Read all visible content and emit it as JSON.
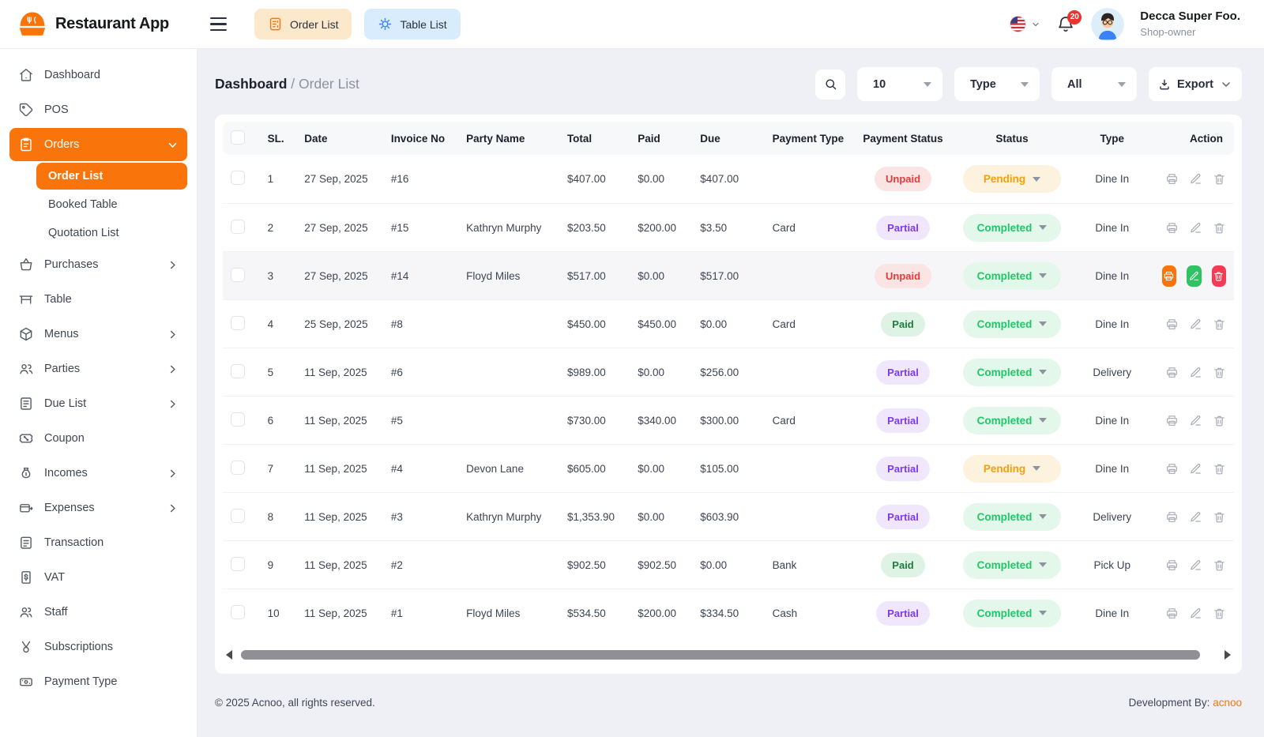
{
  "app": {
    "name": "Restaurant App"
  },
  "header": {
    "nav_buttons": [
      {
        "label": "Order List",
        "icon": "receipt-icon"
      },
      {
        "label": "Table List",
        "icon": "round-table-icon"
      }
    ],
    "language_icon": "us-flag-icon",
    "notification_count": "20",
    "user": {
      "name": "Decca Super Foo.",
      "role": "Shop-owner"
    }
  },
  "sidebar": {
    "items": [
      {
        "icon": "home-icon",
        "label": "Dashboard"
      },
      {
        "icon": "tag-icon",
        "label": "POS"
      },
      {
        "icon": "clipboard-icon",
        "label": "Orders",
        "active": true,
        "expanded": true,
        "children": [
          {
            "label": "Order List",
            "active": true
          },
          {
            "label": "Booked Table"
          },
          {
            "label": "Quotation List"
          }
        ]
      },
      {
        "icon": "basket-icon",
        "label": "Purchases",
        "chevron": true
      },
      {
        "icon": "table-icon",
        "label": "Table"
      },
      {
        "icon": "box-icon",
        "label": "Menus",
        "chevron": true
      },
      {
        "icon": "users-icon",
        "label": "Parties",
        "chevron": true
      },
      {
        "icon": "due-list-icon",
        "label": "Due List",
        "chevron": true
      },
      {
        "icon": "coupon-icon",
        "label": "Coupon"
      },
      {
        "icon": "money-bag-icon",
        "label": "Incomes",
        "chevron": true
      },
      {
        "icon": "expense-icon",
        "label": "Expenses",
        "chevron": true
      },
      {
        "icon": "transaction-icon",
        "label": "Transaction"
      },
      {
        "icon": "vat-icon",
        "label": "VAT"
      },
      {
        "icon": "staff-icon",
        "label": "Staff"
      },
      {
        "icon": "subscription-icon",
        "label": "Subscriptions"
      },
      {
        "icon": "payment-type-icon",
        "label": "Payment Type"
      }
    ]
  },
  "breadcrumb": {
    "parent": "Dashboard",
    "separator": "/",
    "current": "Order List"
  },
  "toolbar": {
    "search_icon": "search-icon",
    "per_page": "10",
    "type_filter": "Type",
    "status_filter": "All",
    "export_label": "Export",
    "export_icon": "download-icon"
  },
  "table": {
    "columns": [
      "SL.",
      "Date",
      "Invoice No",
      "Party Name",
      "Total",
      "Paid",
      "Due",
      "Payment Type",
      "Payment Status",
      "Status",
      "Type",
      "Action"
    ],
    "rows": [
      {
        "sl": "1",
        "date": "27 Sep, 2025",
        "invoice": "#16",
        "party": "",
        "total": "$407.00",
        "paid": "$0.00",
        "due": "$407.00",
        "payment_type": "",
        "payment_status": "Unpaid",
        "status": "Pending",
        "type": "Dine In",
        "highlighted": false
      },
      {
        "sl": "2",
        "date": "27 Sep, 2025",
        "invoice": "#15",
        "party": "Kathryn Murphy",
        "total": "$203.50",
        "paid": "$200.00",
        "due": "$3.50",
        "payment_type": "Card",
        "payment_status": "Partial",
        "status": "Completed",
        "type": "Dine In",
        "highlighted": false
      },
      {
        "sl": "3",
        "date": "27 Sep, 2025",
        "invoice": "#14",
        "party": "Floyd Miles",
        "total": "$517.00",
        "paid": "$0.00",
        "due": "$517.00",
        "payment_type": "",
        "payment_status": "Unpaid",
        "status": "Completed",
        "type": "Dine In",
        "highlighted": true
      },
      {
        "sl": "4",
        "date": "25 Sep, 2025",
        "invoice": "#8",
        "party": "",
        "total": "$450.00",
        "paid": "$450.00",
        "due": "$0.00",
        "payment_type": "Card",
        "payment_status": "Paid",
        "status": "Completed",
        "type": "Dine In",
        "highlighted": false
      },
      {
        "sl": "5",
        "date": "11 Sep, 2025",
        "invoice": "#6",
        "party": "",
        "total": "$989.00",
        "paid": "$0.00",
        "due": "$256.00",
        "payment_type": "",
        "payment_status": "Partial",
        "status": "Completed",
        "type": "Delivery",
        "highlighted": false
      },
      {
        "sl": "6",
        "date": "11 Sep, 2025",
        "invoice": "#5",
        "party": "",
        "total": "$730.00",
        "paid": "$340.00",
        "due": "$300.00",
        "payment_type": "Card",
        "payment_status": "Partial",
        "status": "Completed",
        "type": "Dine In",
        "highlighted": false
      },
      {
        "sl": "7",
        "date": "11 Sep, 2025",
        "invoice": "#4",
        "party": "Devon Lane",
        "total": "$605.00",
        "paid": "$0.00",
        "due": "$105.00",
        "payment_type": "",
        "payment_status": "Partial",
        "status": "Pending",
        "type": "Dine In",
        "highlighted": false
      },
      {
        "sl": "8",
        "date": "11 Sep, 2025",
        "invoice": "#3",
        "party": "Kathryn Murphy",
        "total": "$1,353.90",
        "paid": "$0.00",
        "due": "$603.90",
        "payment_type": "",
        "payment_status": "Partial",
        "status": "Completed",
        "type": "Delivery",
        "highlighted": false
      },
      {
        "sl": "9",
        "date": "11 Sep, 2025",
        "invoice": "#2",
        "party": "",
        "total": "$902.50",
        "paid": "$902.50",
        "due": "$0.00",
        "payment_type": "Bank",
        "payment_status": "Paid",
        "status": "Completed",
        "type": "Pick Up",
        "highlighted": false
      },
      {
        "sl": "10",
        "date": "11 Sep, 2025",
        "invoice": "#1",
        "party": "Floyd Miles",
        "total": "$534.50",
        "paid": "$200.00",
        "due": "$334.50",
        "payment_type": "Cash",
        "payment_status": "Partial",
        "status": "Completed",
        "type": "Dine In",
        "highlighted": false
      }
    ],
    "action_icons": [
      "printer-icon",
      "pencil-icon",
      "trash-icon"
    ]
  },
  "footer": {
    "copyright": "© 2025 Acnoo, all rights reserved.",
    "development_by": "Development By:",
    "developer": "acnoo"
  },
  "colors": {
    "accent_orange": "#F9750B",
    "completed_green": "#1EC965",
    "pending_orange": "#F5A00B",
    "unpaid_red": "#E23B3B",
    "partial_purple": "#7C3AED",
    "paid_green": "#1F7A40",
    "table_list_blue": "#3B82F6",
    "delete_red": "#F43B53",
    "page_background": "#EFF0F6"
  }
}
